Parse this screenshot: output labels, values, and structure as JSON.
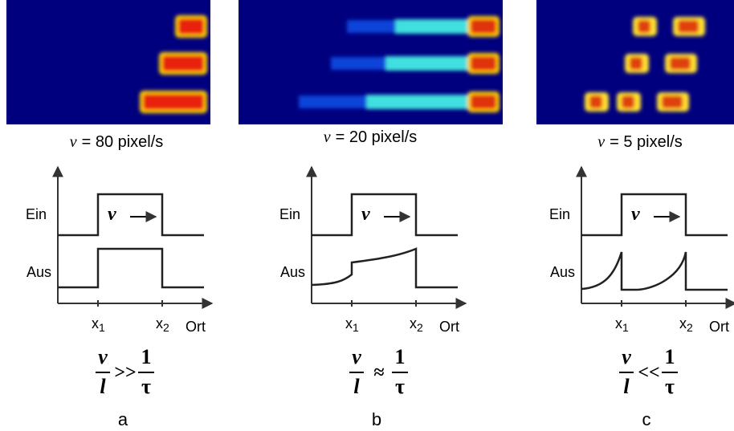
{
  "panels": [
    {
      "caption_var": "v",
      "caption_text": "= 80 pixel/s",
      "ein": "Ein",
      "aus": "Aus",
      "arrow_var": "v",
      "x1": "x",
      "x1_sub": "1",
      "x2": "x",
      "x2_sub": "2",
      "axis": "Ort",
      "num": "v",
      "den": "l",
      "relation": ">>",
      "one": "1",
      "tau": "τ",
      "letter": "a"
    },
    {
      "caption_var": "v",
      "caption_text": "= 20 pixel/s",
      "ein": "Ein",
      "aus": "Aus",
      "arrow_var": "v",
      "x1": "x",
      "x1_sub": "1",
      "x2": "x",
      "x2_sub": "2",
      "axis": "Ort",
      "num": "v",
      "den": "l",
      "relation": "≈",
      "one": "1",
      "tau": "τ",
      "letter": "b"
    },
    {
      "caption_var": "v",
      "caption_text": "= 5 pixel/s",
      "ein": "Ein",
      "aus": "Aus",
      "arrow_var": "v",
      "x1": "x",
      "x1_sub": "1",
      "x2": "x",
      "x2_sub": "2",
      "axis": "Ort",
      "num": "v",
      "den": "l",
      "relation": "<<",
      "one": "1",
      "tau": "τ",
      "letter": "c"
    }
  ]
}
